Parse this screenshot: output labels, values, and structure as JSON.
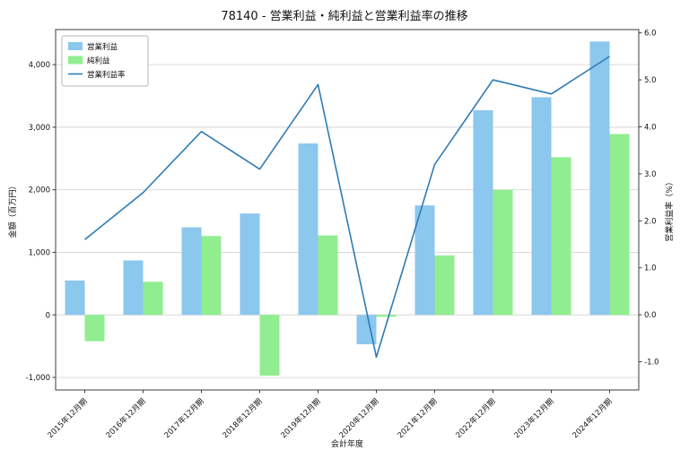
{
  "chart_data": {
    "type": "bar",
    "subtype": "bar+line-combo",
    "title": "78140 - 営業利益・純利益と営業利益率の推移",
    "xlabel": "会計年度",
    "ylabel_left": "金額（百万円）",
    "ylabel_right": "営業利益率（%）",
    "categories": [
      "2015年12月期",
      "2016年12月期",
      "2017年12月期",
      "2018年12月期",
      "2019年12月期",
      "2020年12月期",
      "2021年12月期",
      "2022年12月期",
      "2023年12月期",
      "2024年12月期"
    ],
    "series": [
      {
        "key": "operating_profit",
        "name": "営業利益",
        "type": "bar",
        "axis": "left",
        "color": "#8CC7EE",
        "values": [
          550,
          870,
          1400,
          1620,
          2740,
          -470,
          1750,
          3270,
          3480,
          4370
        ]
      },
      {
        "key": "net_profit",
        "name": "純利益",
        "type": "bar",
        "axis": "left",
        "color": "#90EE90",
        "values": [
          -420,
          530,
          1260,
          -970,
          1270,
          -30,
          950,
          2000,
          2520,
          2890
        ]
      },
      {
        "key": "operating_margin",
        "name": "営業利益率",
        "type": "line",
        "axis": "right",
        "color": "#2E7BB4",
        "values": [
          1.6,
          2.6,
          3.9,
          3.1,
          4.9,
          -0.9,
          3.2,
          5.0,
          4.7,
          5.5
        ]
      }
    ],
    "left_axis": {
      "min": -1200,
      "max": 4560,
      "ticks": [
        -1000,
        0,
        1000,
        2000,
        3000,
        4000
      ]
    },
    "right_axis": {
      "min": -1.6,
      "max": 6.07,
      "ticks": [
        -1.0,
        0.0,
        1.0,
        2.0,
        3.0,
        4.0,
        5.0,
        6.0
      ]
    },
    "legend_position": "upper-left",
    "grid": true,
    "grid_color": "#d5d5d5",
    "spine_color": "#3c3c3c",
    "text_color": "#111111"
  }
}
